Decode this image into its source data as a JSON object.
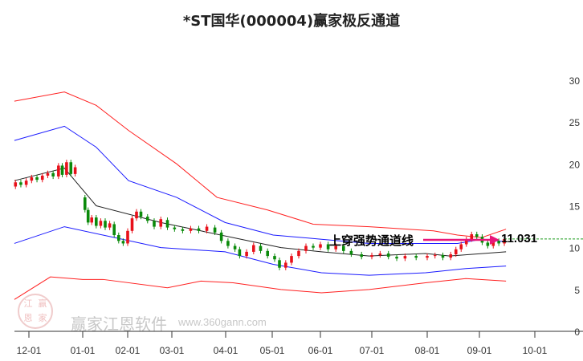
{
  "chart_data": {
    "type": "candlestick-channel",
    "title": "*ST国华(000004)赢家极反通道",
    "x_ticks": [
      "12-01",
      "01-01",
      "02-01",
      "03-01",
      "04-01",
      "05-01",
      "06-01",
      "07-01",
      "08-01",
      "09-01",
      "10-01"
    ],
    "x_unit": "months since 12-01",
    "y_ticks": [
      0,
      5,
      10,
      15,
      20,
      25,
      30
    ],
    "ylim": [
      0,
      30
    ],
    "colors": {
      "up": "#e8101a",
      "down": "#0a8a0a",
      "mid": "#222222",
      "blue": "#1a1aff",
      "red": "#ff2020",
      "arrow": "#e8167a",
      "level": "#1a9a1a"
    },
    "series": [
      {
        "name": "red-upper",
        "points": [
          [
            -0.27,
            27.5
          ],
          [
            0.66,
            28.6
          ],
          [
            1.3,
            27
          ],
          [
            2.02,
            24
          ],
          [
            3.09,
            20
          ],
          [
            3.84,
            16
          ],
          [
            4.9,
            14.5
          ],
          [
            5.85,
            12.8
          ],
          [
            6.95,
            12.5
          ],
          [
            8.12,
            12
          ],
          [
            8.58,
            11.5
          ],
          [
            9.04,
            11.2
          ],
          [
            9.48,
            12.2
          ]
        ]
      },
      {
        "name": "blue-upper",
        "points": [
          [
            -0.27,
            22.8
          ],
          [
            0.66,
            24.5
          ],
          [
            1.3,
            22
          ],
          [
            2.02,
            18
          ],
          [
            3.09,
            16
          ],
          [
            3.99,
            13
          ],
          [
            5.02,
            11.5
          ],
          [
            6.02,
            11
          ],
          [
            6.95,
            10.5
          ],
          [
            7.97,
            10.5
          ],
          [
            8.58,
            10.5
          ],
          [
            9.04,
            11
          ],
          [
            9.48,
            10.7
          ]
        ]
      },
      {
        "name": "middle",
        "points": [
          [
            -0.27,
            18
          ],
          [
            0.66,
            19.5
          ],
          [
            1.3,
            15
          ],
          [
            2.75,
            13
          ],
          [
            3.54,
            12
          ],
          [
            4.33,
            11
          ],
          [
            5.18,
            10
          ],
          [
            6.02,
            9.5
          ],
          [
            6.95,
            9
          ],
          [
            7.97,
            9.3
          ],
          [
            8.43,
            9
          ],
          [
            9.48,
            9.5
          ]
        ]
      },
      {
        "name": "blue-lower",
        "points": [
          [
            -0.27,
            10.5
          ],
          [
            0.66,
            12.5
          ],
          [
            1.45,
            11.5
          ],
          [
            2.75,
            10
          ],
          [
            3.99,
            9.5
          ],
          [
            5.02,
            8
          ],
          [
            6.02,
            7
          ],
          [
            6.95,
            6.7
          ],
          [
            7.97,
            7
          ],
          [
            8.74,
            7.5
          ],
          [
            9.48,
            7.8
          ]
        ]
      },
      {
        "name": "red-lower",
        "points": [
          [
            -0.27,
            3.8
          ],
          [
            0.4,
            6.5
          ],
          [
            1.0,
            6.2
          ],
          [
            1.45,
            6.2
          ],
          [
            2.9,
            5.2
          ],
          [
            3.54,
            6.0
          ],
          [
            4.16,
            5.8
          ],
          [
            5.18,
            5
          ],
          [
            6.02,
            4.6
          ],
          [
            6.95,
            5
          ],
          [
            7.97,
            5.8
          ],
          [
            8.74,
            6.3
          ],
          [
            9.48,
            6
          ]
        ]
      }
    ],
    "candles": [
      [
        -0.25,
        17.3,
        17.8
      ],
      [
        -0.15,
        17.8,
        17.5
      ],
      [
        -0.05,
        17.5,
        18.0
      ],
      [
        0.05,
        18,
        18.4
      ],
      [
        0.15,
        18.4,
        18.1
      ],
      [
        0.25,
        18.1,
        18.6
      ],
      [
        0.35,
        18.6,
        18.9
      ],
      [
        0.45,
        18.9,
        18.5
      ],
      [
        0.55,
        18.5,
        19.8
      ],
      [
        0.62,
        19.8,
        18.7
      ],
      [
        0.7,
        18.7,
        20.2
      ],
      [
        0.78,
        20.2,
        18.8
      ],
      [
        0.86,
        18.8,
        19.6
      ],
      [
        1.05,
        16,
        14.5
      ],
      [
        1.12,
        14.5,
        13.0
      ],
      [
        1.2,
        13,
        13.6
      ],
      [
        1.3,
        13.6,
        12.6
      ],
      [
        1.4,
        12.6,
        13.2
      ],
      [
        1.5,
        13.2,
        12.4
      ],
      [
        1.6,
        12.4,
        12.9
      ],
      [
        1.7,
        12.8,
        11.5
      ],
      [
        1.8,
        11.5,
        10.8
      ],
      [
        1.9,
        10.8,
        10.5
      ],
      [
        2.0,
        10.5,
        12
      ],
      [
        2.1,
        12,
        13.5
      ],
      [
        2.2,
        13.5,
        14.3
      ],
      [
        2.3,
        14.3,
        13.7
      ],
      [
        2.45,
        13.7,
        13.2
      ],
      [
        2.6,
        13.2,
        12.5
      ],
      [
        2.75,
        12.5,
        13.4
      ],
      [
        2.9,
        13.3,
        12.4
      ],
      [
        3.05,
        12.4,
        12.2
      ],
      [
        3.2,
        12.2,
        12.0
      ],
      [
        3.35,
        12,
        12.3
      ],
      [
        3.5,
        12.3,
        12.0
      ],
      [
        3.65,
        12.0,
        12.5
      ],
      [
        3.8,
        12.4,
        11.8
      ],
      [
        3.92,
        11.8,
        10.8
      ],
      [
        4.05,
        10.8,
        10.2
      ],
      [
        4.2,
        10.2,
        9.8
      ],
      [
        4.3,
        9.8,
        9.0
      ],
      [
        4.45,
        9,
        9.5
      ],
      [
        4.6,
        9.5,
        10.3
      ],
      [
        4.75,
        10.2,
        9.6
      ],
      [
        4.9,
        9.6,
        9.0
      ],
      [
        5.05,
        9,
        8.6
      ],
      [
        5.15,
        8.5,
        7.6
      ],
      [
        5.28,
        7.6,
        8.2
      ],
      [
        5.4,
        8.2,
        9.0
      ],
      [
        5.55,
        9,
        9.6
      ],
      [
        5.7,
        9.6,
        10.2
      ],
      [
        5.85,
        10.2,
        10.0
      ],
      [
        6.0,
        10,
        10.4
      ],
      [
        6.15,
        10.4,
        9.8
      ],
      [
        6.3,
        9.8,
        10.2
      ],
      [
        6.45,
        10.2,
        9.6
      ],
      [
        6.6,
        9.6,
        9.2
      ],
      [
        6.8,
        9.2,
        8.9
      ],
      [
        7.0,
        8.9,
        9.1
      ],
      [
        7.15,
        9.1,
        9.3
      ],
      [
        7.3,
        9.3,
        8.9
      ],
      [
        7.45,
        8.9,
        8.7
      ],
      [
        7.6,
        8.7,
        9.0
      ],
      [
        7.8,
        9,
        8.8
      ],
      [
        8.0,
        8.8,
        9.0
      ],
      [
        8.15,
        9,
        9.1
      ],
      [
        8.3,
        9.1,
        8.8
      ],
      [
        8.45,
        8.8,
        9.2
      ],
      [
        8.55,
        9.2,
        9.8
      ],
      [
        8.65,
        9.8,
        10.4
      ],
      [
        8.75,
        10.4,
        11.0
      ],
      [
        8.85,
        11,
        11.6
      ],
      [
        8.95,
        11.6,
        11.3
      ],
      [
        9.05,
        11.3,
        10.6
      ],
      [
        9.15,
        10.6,
        10.2
      ],
      [
        9.25,
        10.2,
        10.8
      ],
      [
        9.35,
        10.8,
        10.5
      ],
      [
        9.45,
        10.5,
        11.03
      ]
    ],
    "annotation": {
      "text": "上穿强势通道线",
      "value_label": "11.031",
      "value": 11.031
    }
  },
  "watermark": {
    "brand": "赢家江恩软件",
    "url": "www.360gann.com",
    "seal": [
      "江",
      "赢",
      "恩",
      "家"
    ]
  }
}
